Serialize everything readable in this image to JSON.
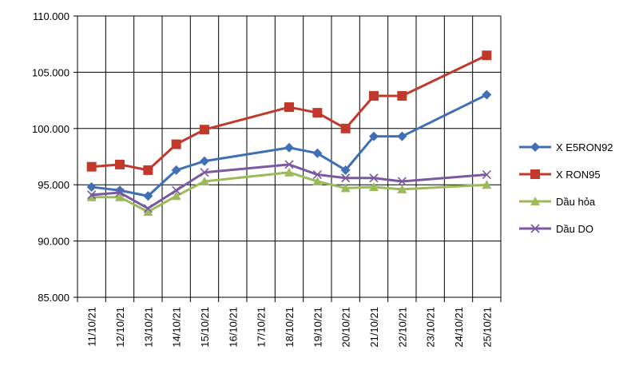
{
  "chart_data": {
    "type": "line",
    "title": "",
    "xlabel": "",
    "ylabel": "",
    "categories": [
      "11/10/21",
      "12/10/21",
      "13/10/21",
      "14/10/21",
      "15/10/21",
      "16/10/21",
      "17/10/21",
      "18/10/21",
      "19/10/21",
      "20/10/21",
      "21/10/21",
      "22/10/21",
      "23/10/21",
      "24/10/21",
      "25/10/21"
    ],
    "ylim": [
      85000,
      110000
    ],
    "yticks": [
      "85.000",
      "90.000",
      "95.000",
      "100.000",
      "105.000",
      "110.000"
    ],
    "ytick_values": [
      85000,
      90000,
      95000,
      100000,
      105000,
      110000
    ],
    "grid": true,
    "legend_position": "right",
    "series": [
      {
        "name": "X E5RON92",
        "color": "#3f6fb5",
        "marker": "diamond",
        "values": [
          94800,
          94500,
          94000,
          96300,
          97100,
          null,
          null,
          98300,
          97800,
          96300,
          99300,
          99300,
          null,
          null,
          103000
        ]
      },
      {
        "name": "X RON95",
        "color": "#c0392b",
        "marker": "square",
        "values": [
          96600,
          96800,
          96300,
          98600,
          99900,
          null,
          null,
          101900,
          101400,
          100000,
          102900,
          102900,
          null,
          null,
          106500
        ]
      },
      {
        "name": "Dầu hỏa",
        "color": "#9bbb59",
        "marker": "triangle",
        "values": [
          93900,
          93900,
          92600,
          94000,
          95300,
          null,
          null,
          96100,
          95300,
          94700,
          94800,
          94600,
          null,
          null,
          95000
        ]
      },
      {
        "name": "Dầu DO",
        "color": "#7b59a0",
        "marker": "x",
        "values": [
          94100,
          94300,
          92900,
          94500,
          96100,
          null,
          null,
          96800,
          95900,
          95600,
          95600,
          95300,
          null,
          null,
          95900
        ]
      }
    ]
  }
}
